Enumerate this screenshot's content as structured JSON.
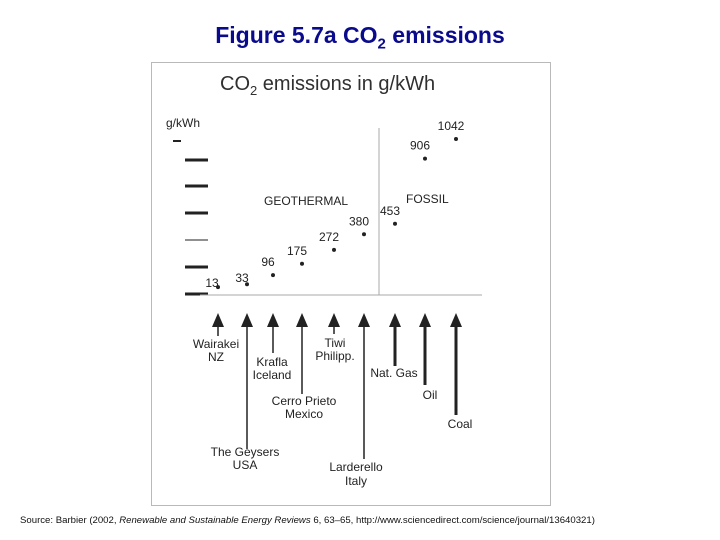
{
  "slide": {
    "title_prefix": "Figure 5.7a CO",
    "title_sub": "2",
    "title_suffix": " emissions"
  },
  "chart_data": {
    "type": "scatter",
    "title_prefix": "CO",
    "title_sub": "2",
    "title_suffix": " emissions in g/kWh",
    "ylabel": "g/kWh",
    "regions": [
      "GEOTHERMAL",
      "FOSSIL"
    ],
    "points": [
      {
        "value": 13,
        "label": "13",
        "source": [
          "Wairakei",
          "NZ"
        ],
        "region": "GEOTHERMAL"
      },
      {
        "value": 33,
        "label": "33",
        "source": [
          "The Geysers",
          "USA"
        ],
        "region": "GEOTHERMAL"
      },
      {
        "value": 96,
        "label": "96",
        "source": [
          "Krafla",
          "Iceland"
        ],
        "region": "GEOTHERMAL"
      },
      {
        "value": 175,
        "label": "175",
        "source": [
          "Cerro Prieto",
          "Mexico"
        ],
        "region": "GEOTHERMAL"
      },
      {
        "value": 272,
        "label": "272",
        "source": [
          "Tiwi",
          "Philipp."
        ],
        "region": "GEOTHERMAL"
      },
      {
        "value": 380,
        "label": "380",
        "source": [
          "Larderello",
          "Italy"
        ],
        "region": "GEOTHERMAL"
      },
      {
        "value": 453,
        "label": "453",
        "source": [
          "Nat. Gas"
        ],
        "region": "FOSSIL"
      },
      {
        "value": 906,
        "label": "906",
        "source": [
          "Oil"
        ],
        "region": "FOSSIL"
      },
      {
        "value": 1042,
        "label": "1042",
        "source": [
          "Coal"
        ],
        "region": "FOSSIL"
      }
    ],
    "grid": false
  },
  "source": {
    "prefix": "Source: Barbier (2002, ",
    "journal": "Renewable and Sustainable Energy Reviews",
    "suffix": " 6, 63–65, http://www.sciencedirect.com/science/journal/13640321)"
  },
  "colors": {
    "title": "#0a0a8c",
    "ink": "#222222",
    "divider": "#aaaaaa"
  }
}
